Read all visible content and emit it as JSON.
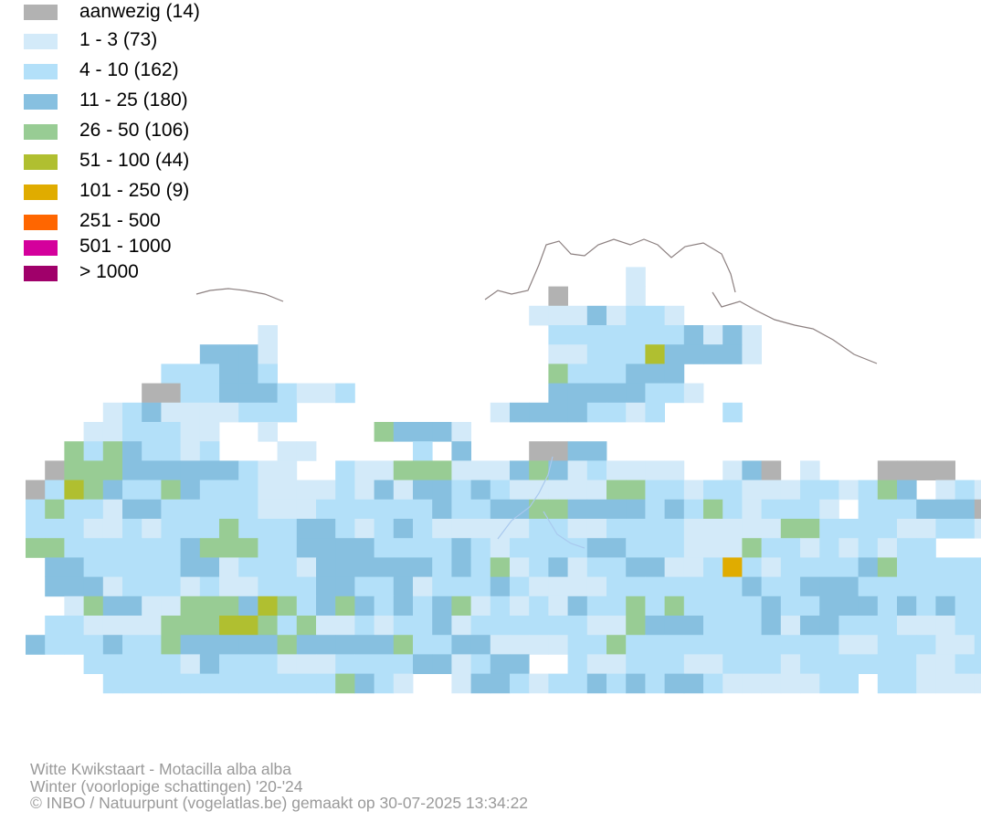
{
  "legend": {
    "items": [
      {
        "label": "aanwezig (14)",
        "color": "#b2b2b2"
      },
      {
        "label": "1 - 3 (73)",
        "color": "#d3eaf9"
      },
      {
        "label": "4 - 10 (162)",
        "color": "#b3e0f9"
      },
      {
        "label": "11 - 25 (180)",
        "color": "#87c0e0"
      },
      {
        "label": "26 - 50 (106)",
        "color": "#98cc94"
      },
      {
        "label": "51 - 100 (44)",
        "color": "#b0bf30"
      },
      {
        "label": "101 - 250 (9)",
        "color": "#e0ac00"
      },
      {
        "label": "251 - 500",
        "color": "#ff6600"
      },
      {
        "label": "501 - 1000",
        "color": "#d4009c"
      },
      {
        "label": "> 1000",
        "color": "#a0006a"
      }
    ]
  },
  "map": {
    "border_color": "#8c8080",
    "river_color": "#a9c9ee"
  },
  "footer": {
    "species": "Witte Kwikstaart - Motacilla alba alba",
    "period": "Winter (voorlopige schattingen) '20-'24",
    "credit": "© INBO / Natuurpunt (vogelatlas.be) gemaakt op 30-07-2025 13:34:22"
  }
}
